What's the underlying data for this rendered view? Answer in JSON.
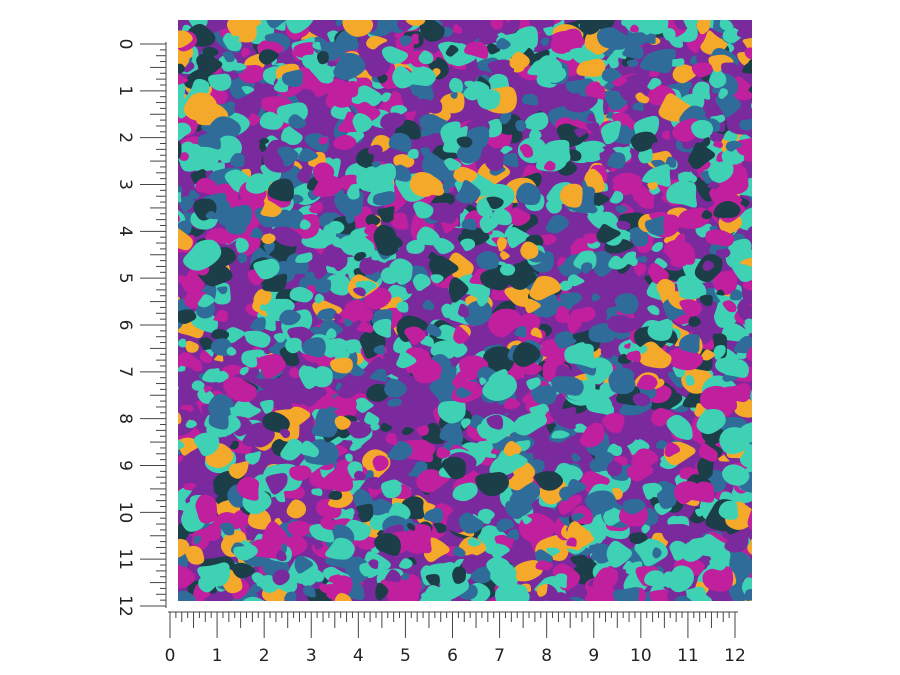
{
  "vertical_ruler": {
    "labels": [
      0,
      1,
      2,
      3,
      4,
      5,
      6,
      7,
      8,
      9,
      10,
      11,
      12
    ]
  },
  "horizontal_ruler": {
    "labels": [
      0,
      1,
      2,
      3,
      4,
      5,
      6,
      7,
      8,
      9,
      10,
      11,
      12
    ]
  }
}
